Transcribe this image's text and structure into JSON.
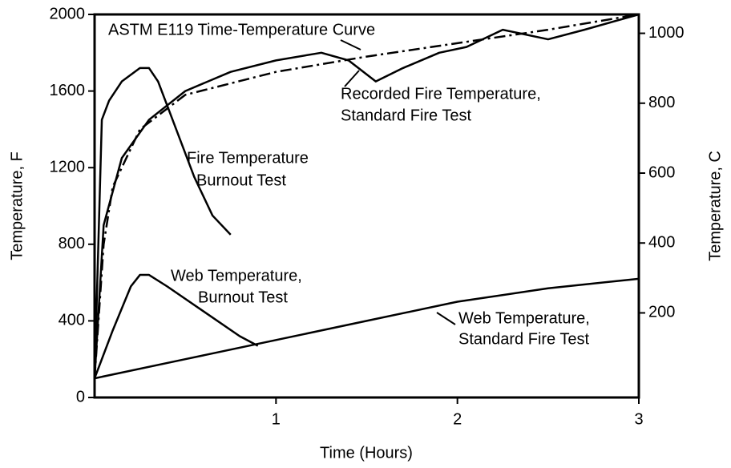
{
  "chart_data": {
    "type": "line",
    "xlabel": "Time (Hours)",
    "ylabel": "Temperature, F",
    "y2label": "Temperature, C",
    "xlim": [
      0,
      3
    ],
    "xticks": [
      1,
      2,
      3
    ],
    "ylim": [
      0,
      2000
    ],
    "yticks": [
      0,
      400,
      800,
      1200,
      1600,
      2000
    ],
    "y2lim": [
      -42,
      1054
    ],
    "y2ticks": [
      200,
      400,
      600,
      800,
      1000
    ],
    "grid": false,
    "series": [
      {
        "name": "ASTM E119 Time-Temperature Curve",
        "color": "#000000",
        "dash": "dashdot",
        "x": [
          0,
          0.05,
          0.1,
          0.25,
          0.5,
          1,
          1.5,
          2,
          2.5,
          3
        ],
        "values": [
          100,
          800,
          1100,
          1400,
          1580,
          1700,
          1780,
          1850,
          1920,
          2000
        ]
      },
      {
        "name": "Recorded Fire Temperature, Standard Fire Test",
        "color": "#000000",
        "dash": "solid",
        "x": [
          0,
          0.05,
          0.15,
          0.3,
          0.5,
          0.75,
          1,
          1.25,
          1.4,
          1.55,
          1.7,
          1.9,
          2.05,
          2.25,
          2.35,
          2.5,
          2.7,
          3
        ],
        "values": [
          100,
          900,
          1250,
          1450,
          1600,
          1700,
          1760,
          1800,
          1760,
          1650,
          1720,
          1800,
          1830,
          1920,
          1900,
          1870,
          1920,
          2000
        ]
      },
      {
        "name": "Fire Temperature Burnout Test",
        "color": "#000000",
        "dash": "solid",
        "x": [
          0,
          0.04,
          0.08,
          0.15,
          0.25,
          0.3,
          0.35,
          0.45,
          0.55,
          0.65,
          0.75
        ],
        "values": [
          100,
          1450,
          1550,
          1650,
          1720,
          1720,
          1650,
          1400,
          1150,
          950,
          850
        ]
      },
      {
        "name": "Web Temperature, Burnout Test",
        "color": "#000000",
        "dash": "solid",
        "x": [
          0,
          0.1,
          0.2,
          0.25,
          0.3,
          0.4,
          0.6,
          0.8,
          0.9
        ],
        "values": [
          100,
          350,
          580,
          640,
          640,
          580,
          450,
          320,
          270
        ]
      },
      {
        "name": "Web Temperature, Standard Fire Test",
        "color": "#000000",
        "dash": "solid",
        "x": [
          0,
          0.5,
          1,
          1.5,
          2,
          2.5,
          3
        ],
        "values": [
          100,
          200,
          300,
          400,
          500,
          570,
          620
        ]
      }
    ],
    "annotations": [
      "ASTM E119 Time-Temperature Curve",
      "Recorded Fire Temperature,",
      "Standard Fire Test",
      "Fire Temperature",
      "Burnout Test",
      "Web Temperature,",
      "Burnout Test",
      "Web Temperature,",
      "Standard Fire Test"
    ]
  }
}
